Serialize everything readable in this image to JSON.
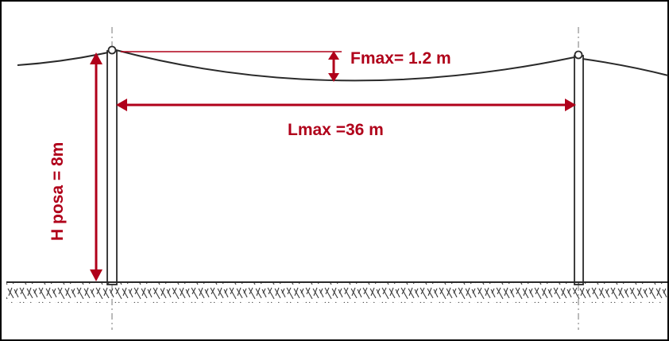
{
  "diagram": {
    "sag_label": "Fmax= 1.2 m",
    "span_label": "Lmax =36 m",
    "height_label": "H posa = 8m",
    "colors": {
      "annotation": "#b0001a",
      "drawing": "#2a2a2a",
      "frame": "#000000"
    }
  }
}
